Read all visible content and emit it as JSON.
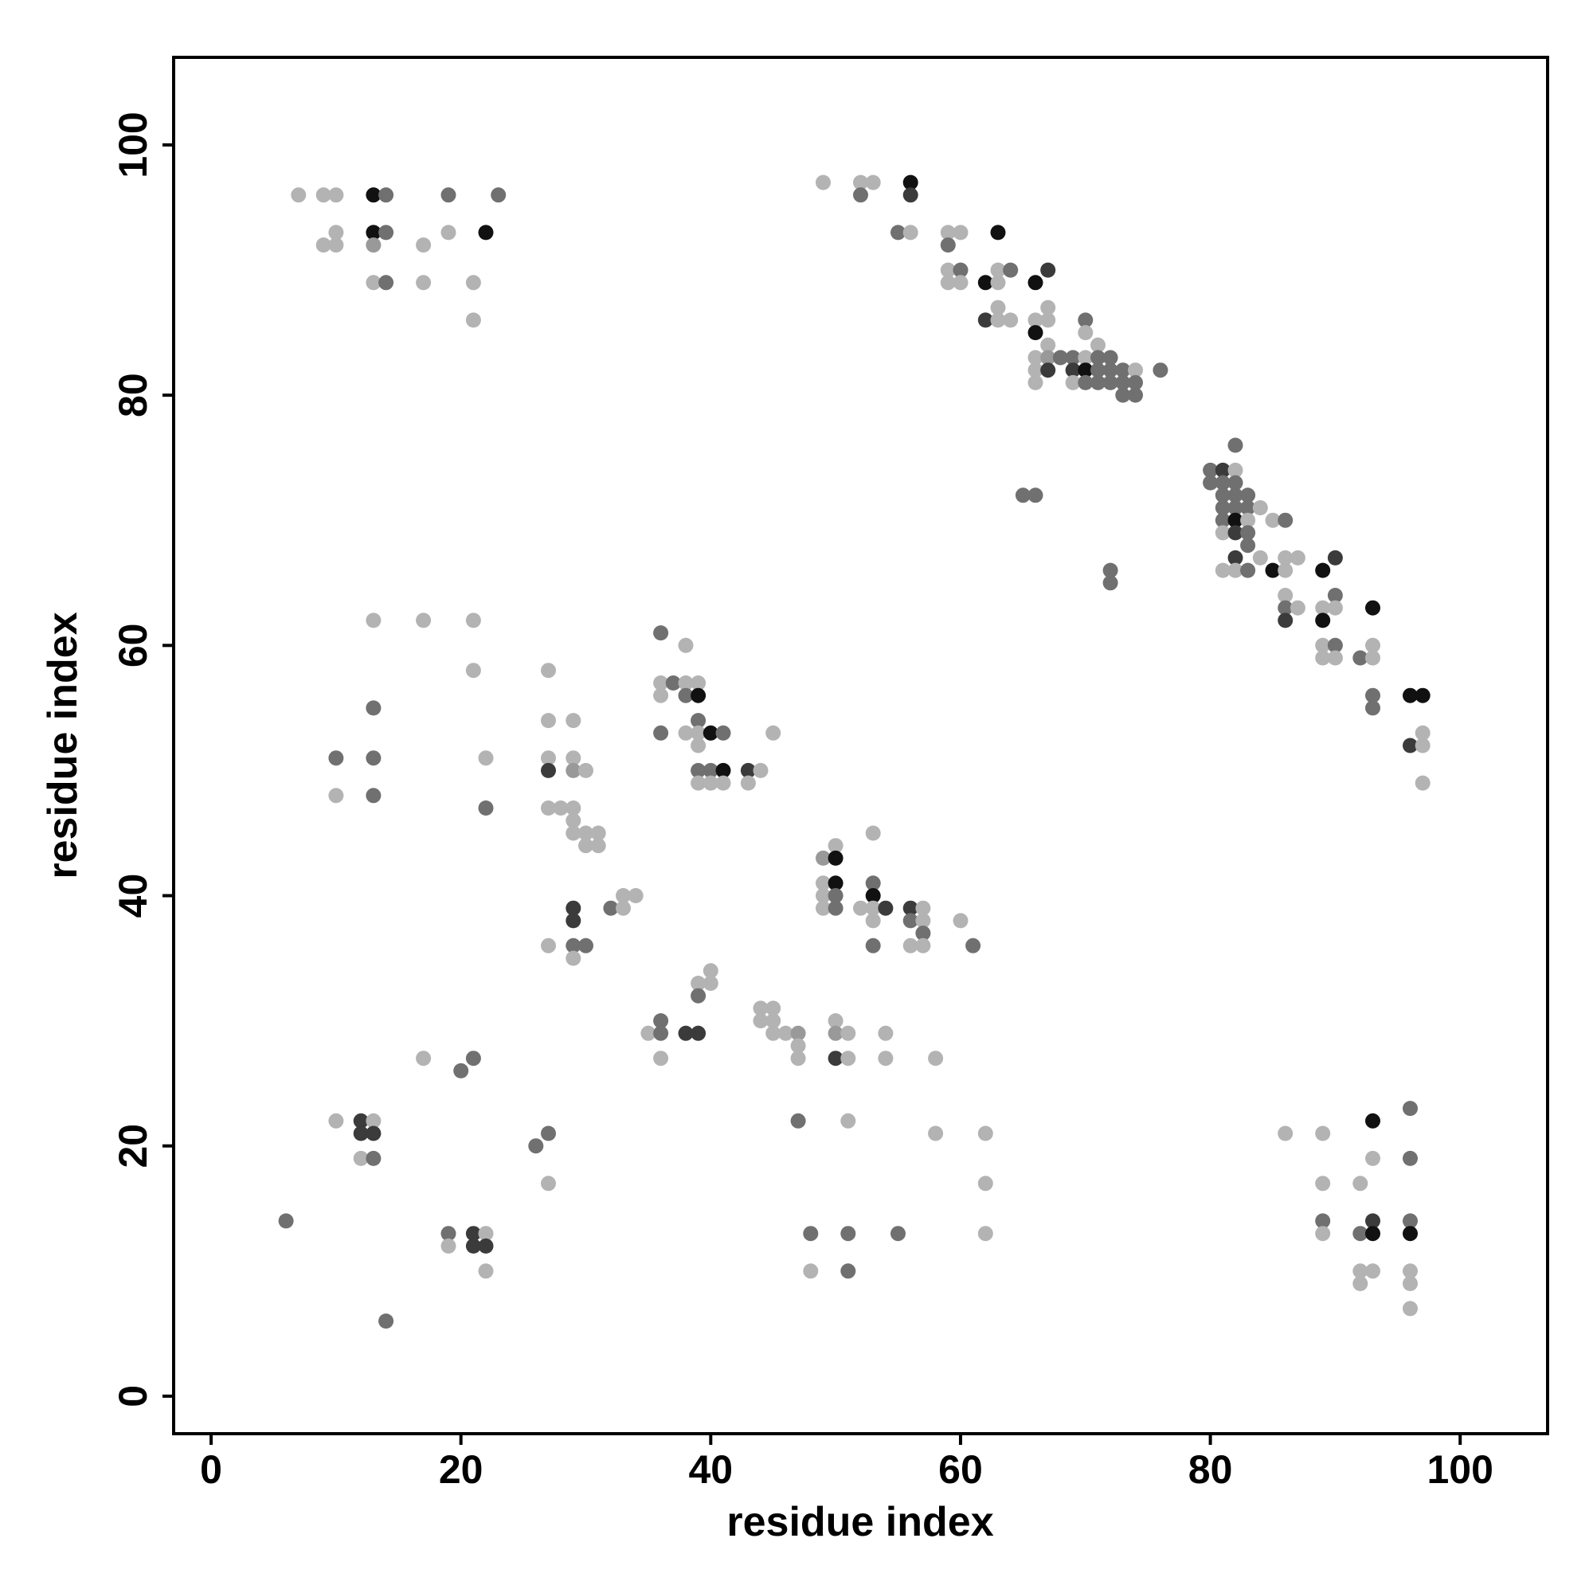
{
  "chart_data": {
    "type": "scatter",
    "title": "",
    "xlabel": "residue index",
    "ylabel": "residue index",
    "xlim": [
      -3,
      107
    ],
    "ylim": [
      -3,
      107
    ],
    "xticks": [
      0,
      20,
      40,
      60,
      80,
      100
    ],
    "yticks": [
      0,
      20,
      40,
      60,
      80,
      100
    ],
    "grid": false,
    "legend": "none",
    "colors": {
      "l1": "#b3b3b3",
      "l2": "#999999",
      "l3": "#707070",
      "l4": "#3b3b3b",
      "l5": "#111111"
    },
    "points": [
      [
        7,
        96,
        1
      ],
      [
        9,
        96,
        1
      ],
      [
        10,
        96,
        1
      ],
      [
        13,
        96,
        5
      ],
      [
        14,
        96,
        3
      ],
      [
        19,
        96,
        3
      ],
      [
        23,
        96,
        3
      ],
      [
        9,
        92,
        1
      ],
      [
        10,
        93,
        1
      ],
      [
        10,
        92,
        1
      ],
      [
        13,
        93,
        5
      ],
      [
        14,
        93,
        3
      ],
      [
        13,
        92,
        2
      ],
      [
        17,
        92,
        1
      ],
      [
        19,
        93,
        1
      ],
      [
        22,
        93,
        5
      ],
      [
        13,
        89,
        1
      ],
      [
        14,
        89,
        3
      ],
      [
        17,
        89,
        1
      ],
      [
        21,
        89,
        1
      ],
      [
        21,
        86,
        1
      ],
      [
        49,
        97,
        1
      ],
      [
        52,
        97,
        1
      ],
      [
        53,
        97,
        1
      ],
      [
        52,
        96,
        3
      ],
      [
        56,
        97,
        5
      ],
      [
        56,
        96,
        4
      ],
      [
        55,
        93,
        3
      ],
      [
        56,
        93,
        1
      ],
      [
        59,
        93,
        1
      ],
      [
        60,
        93,
        1
      ],
      [
        59,
        92,
        3
      ],
      [
        63,
        93,
        5
      ],
      [
        59,
        90,
        1
      ],
      [
        60,
        90,
        3
      ],
      [
        59,
        89,
        1
      ],
      [
        60,
        89,
        1
      ],
      [
        62,
        89,
        5
      ],
      [
        63,
        90,
        1
      ],
      [
        63,
        89,
        1
      ],
      [
        64,
        90,
        3
      ],
      [
        66,
        89,
        5
      ],
      [
        67,
        90,
        4
      ],
      [
        62,
        86,
        4
      ],
      [
        63,
        87,
        1
      ],
      [
        63,
        86,
        1
      ],
      [
        64,
        86,
        1
      ],
      [
        66,
        86,
        1
      ],
      [
        67,
        87,
        1
      ],
      [
        67,
        86,
        1
      ],
      [
        66,
        85,
        5
      ],
      [
        66,
        83,
        1
      ],
      [
        66,
        82,
        1
      ],
      [
        66,
        81,
        1
      ],
      [
        67,
        84,
        1
      ],
      [
        67,
        83,
        2
      ],
      [
        67,
        82,
        4
      ],
      [
        68,
        83,
        3
      ],
      [
        69,
        83,
        3
      ],
      [
        69,
        82,
        4
      ],
      [
        69,
        81,
        1
      ],
      [
        70,
        86,
        3
      ],
      [
        70,
        85,
        1
      ],
      [
        70,
        83,
        1
      ],
      [
        70,
        82,
        5
      ],
      [
        70,
        81,
        3
      ],
      [
        71,
        84,
        1
      ],
      [
        71,
        83,
        3
      ],
      [
        71,
        82,
        3
      ],
      [
        71,
        81,
        3
      ],
      [
        72,
        83,
        3
      ],
      [
        72,
        82,
        3
      ],
      [
        72,
        81,
        3
      ],
      [
        73,
        82,
        3
      ],
      [
        73,
        81,
        3
      ],
      [
        73,
        80,
        3
      ],
      [
        74,
        82,
        1
      ],
      [
        74,
        81,
        3
      ],
      [
        74,
        80,
        3
      ],
      [
        76,
        82,
        3
      ],
      [
        65,
        72,
        3
      ],
      [
        66,
        72,
        3
      ],
      [
        72,
        66,
        3
      ],
      [
        72,
        65,
        3
      ],
      [
        80,
        74,
        3
      ],
      [
        80,
        73,
        3
      ],
      [
        81,
        74,
        4
      ],
      [
        81,
        73,
        3
      ],
      [
        81,
        72,
        3
      ],
      [
        81,
        71,
        3
      ],
      [
        81,
        70,
        3
      ],
      [
        81,
        69,
        1
      ],
      [
        81,
        66,
        1
      ],
      [
        82,
        76,
        3
      ],
      [
        82,
        74,
        1
      ],
      [
        82,
        73,
        3
      ],
      [
        82,
        72,
        3
      ],
      [
        82,
        71,
        3
      ],
      [
        82,
        70,
        5
      ],
      [
        82,
        69,
        4
      ],
      [
        82,
        67,
        4
      ],
      [
        82,
        66,
        1
      ],
      [
        83,
        72,
        3
      ],
      [
        83,
        71,
        3
      ],
      [
        83,
        70,
        1
      ],
      [
        83,
        69,
        3
      ],
      [
        83,
        68,
        3
      ],
      [
        83,
        66,
        3
      ],
      [
        84,
        71,
        1
      ],
      [
        84,
        67,
        1
      ],
      [
        85,
        70,
        1
      ],
      [
        85,
        66,
        5
      ],
      [
        86,
        70,
        3
      ],
      [
        86,
        67,
        1
      ],
      [
        86,
        66,
        1
      ],
      [
        86,
        64,
        1
      ],
      [
        86,
        63,
        3
      ],
      [
        86,
        62,
        4
      ],
      [
        87,
        67,
        1
      ],
      [
        87,
        63,
        1
      ],
      [
        89,
        66,
        5
      ],
      [
        89,
        63,
        1
      ],
      [
        89,
        62,
        5
      ],
      [
        89,
        60,
        1
      ],
      [
        89,
        59,
        1
      ],
      [
        90,
        67,
        4
      ],
      [
        90,
        64,
        3
      ],
      [
        90,
        63,
        1
      ],
      [
        90,
        60,
        3
      ],
      [
        90,
        59,
        1
      ],
      [
        92,
        59,
        3
      ],
      [
        93,
        63,
        5
      ],
      [
        93,
        60,
        1
      ],
      [
        93,
        59,
        1
      ],
      [
        93,
        56,
        3
      ],
      [
        93,
        55,
        3
      ],
      [
        96,
        56,
        5
      ],
      [
        97,
        56,
        5
      ],
      [
        96,
        52,
        4
      ],
      [
        97,
        53,
        1
      ],
      [
        97,
        52,
        1
      ],
      [
        97,
        49,
        1
      ],
      [
        13,
        62,
        1
      ],
      [
        17,
        62,
        1
      ],
      [
        21,
        62,
        1
      ],
      [
        21,
        58,
        1
      ],
      [
        13,
        55,
        3
      ],
      [
        10,
        51,
        3
      ],
      [
        13,
        51,
        3
      ],
      [
        10,
        48,
        1
      ],
      [
        13,
        48,
        3
      ],
      [
        22,
        51,
        1
      ],
      [
        22,
        47,
        3
      ],
      [
        27,
        58,
        1
      ],
      [
        27,
        54,
        1
      ],
      [
        27,
        51,
        1
      ],
      [
        27,
        50,
        4
      ],
      [
        29,
        54,
        1
      ],
      [
        29,
        51,
        1
      ],
      [
        29,
        50,
        2
      ],
      [
        30,
        50,
        1
      ],
      [
        27,
        47,
        1
      ],
      [
        28,
        47,
        1
      ],
      [
        29,
        47,
        1
      ],
      [
        29,
        46,
        1
      ],
      [
        29,
        45,
        1
      ],
      [
        30,
        45,
        1
      ],
      [
        30,
        44,
        1
      ],
      [
        31,
        45,
        1
      ],
      [
        31,
        44,
        1
      ],
      [
        27,
        36,
        1
      ],
      [
        29,
        39,
        4
      ],
      [
        29,
        38,
        4
      ],
      [
        29,
        36,
        3
      ],
      [
        30,
        36,
        3
      ],
      [
        29,
        35,
        1
      ],
      [
        32,
        39,
        3
      ],
      [
        33,
        40,
        1
      ],
      [
        33,
        39,
        1
      ],
      [
        34,
        40,
        1
      ],
      [
        36,
        61,
        3
      ],
      [
        36,
        57,
        1
      ],
      [
        36,
        56,
        1
      ],
      [
        37,
        57,
        3
      ],
      [
        38,
        60,
        1
      ],
      [
        38,
        57,
        1
      ],
      [
        38,
        56,
        3
      ],
      [
        39,
        57,
        1
      ],
      [
        39,
        56,
        5
      ],
      [
        36,
        53,
        3
      ],
      [
        38,
        53,
        1
      ],
      [
        39,
        54,
        3
      ],
      [
        39,
        53,
        1
      ],
      [
        39,
        52,
        1
      ],
      [
        40,
        53,
        5
      ],
      [
        41,
        53,
        3
      ],
      [
        39,
        50,
        3
      ],
      [
        40,
        50,
        3
      ],
      [
        41,
        50,
        5
      ],
      [
        39,
        49,
        1
      ],
      [
        40,
        49,
        1
      ],
      [
        41,
        49,
        1
      ],
      [
        43,
        50,
        4
      ],
      [
        43,
        49,
        1
      ],
      [
        44,
        50,
        1
      ],
      [
        45,
        53,
        1
      ],
      [
        49,
        43,
        2
      ],
      [
        50,
        44,
        1
      ],
      [
        50,
        43,
        5
      ],
      [
        49,
        41,
        1
      ],
      [
        50,
        41,
        5
      ],
      [
        49,
        40,
        1
      ],
      [
        50,
        40,
        3
      ],
      [
        49,
        39,
        1
      ],
      [
        50,
        39,
        3
      ],
      [
        52,
        39,
        1
      ],
      [
        53,
        41,
        3
      ],
      [
        53,
        40,
        5
      ],
      [
        53,
        39,
        1
      ],
      [
        53,
        38,
        1
      ],
      [
        54,
        39,
        4
      ],
      [
        53,
        45,
        1
      ],
      [
        53,
        36,
        3
      ],
      [
        56,
        39,
        4
      ],
      [
        56,
        38,
        3
      ],
      [
        56,
        36,
        1
      ],
      [
        57,
        39,
        1
      ],
      [
        57,
        38,
        1
      ],
      [
        57,
        37,
        3
      ],
      [
        57,
        36,
        1
      ],
      [
        60,
        38,
        1
      ],
      [
        61,
        36,
        3
      ],
      [
        35,
        29,
        1
      ],
      [
        36,
        30,
        3
      ],
      [
        36,
        29,
        3
      ],
      [
        36,
        27,
        1
      ],
      [
        38,
        29,
        4
      ],
      [
        39,
        29,
        4
      ],
      [
        39,
        33,
        1
      ],
      [
        39,
        32,
        3
      ],
      [
        40,
        34,
        1
      ],
      [
        40,
        33,
        1
      ],
      [
        44,
        31,
        1
      ],
      [
        44,
        30,
        1
      ],
      [
        45,
        31,
        1
      ],
      [
        45,
        30,
        1
      ],
      [
        45,
        29,
        1
      ],
      [
        46,
        29,
        1
      ],
      [
        47,
        29,
        2
      ],
      [
        47,
        28,
        1
      ],
      [
        47,
        27,
        1
      ],
      [
        50,
        30,
        1
      ],
      [
        50,
        29,
        2
      ],
      [
        50,
        27,
        4
      ],
      [
        51,
        29,
        1
      ],
      [
        51,
        27,
        1
      ],
      [
        54,
        29,
        1
      ],
      [
        54,
        27,
        1
      ],
      [
        58,
        27,
        1
      ],
      [
        6,
        14,
        3
      ],
      [
        10,
        22,
        1
      ],
      [
        12,
        22,
        4
      ],
      [
        12,
        21,
        4
      ],
      [
        13,
        22,
        1
      ],
      [
        13,
        21,
        4
      ],
      [
        12,
        19,
        1
      ],
      [
        13,
        19,
        3
      ],
      [
        14,
        6,
        3
      ],
      [
        17,
        27,
        1
      ],
      [
        20,
        26,
        3
      ],
      [
        21,
        27,
        3
      ],
      [
        19,
        13,
        3
      ],
      [
        19,
        12,
        1
      ],
      [
        21,
        13,
        4
      ],
      [
        21,
        12,
        4
      ],
      [
        22,
        13,
        1
      ],
      [
        22,
        12,
        4
      ],
      [
        22,
        10,
        1
      ],
      [
        26,
        20,
        3
      ],
      [
        27,
        21,
        3
      ],
      [
        27,
        17,
        1
      ],
      [
        47,
        22,
        3
      ],
      [
        48,
        13,
        3
      ],
      [
        48,
        10,
        1
      ],
      [
        51,
        22,
        1
      ],
      [
        51,
        13,
        3
      ],
      [
        51,
        10,
        3
      ],
      [
        55,
        13,
        3
      ],
      [
        58,
        21,
        1
      ],
      [
        62,
        21,
        1
      ],
      [
        62,
        17,
        1
      ],
      [
        62,
        13,
        1
      ],
      [
        86,
        21,
        1
      ],
      [
        89,
        21,
        1
      ],
      [
        89,
        17,
        1
      ],
      [
        89,
        14,
        3
      ],
      [
        89,
        13,
        1
      ],
      [
        92,
        17,
        1
      ],
      [
        92,
        13,
        3
      ],
      [
        92,
        10,
        1
      ],
      [
        92,
        9,
        1
      ],
      [
        93,
        22,
        5
      ],
      [
        93,
        19,
        1
      ],
      [
        93,
        14,
        4
      ],
      [
        93,
        13,
        5
      ],
      [
        93,
        10,
        1
      ],
      [
        96,
        23,
        3
      ],
      [
        96,
        19,
        3
      ],
      [
        96,
        14,
        3
      ],
      [
        96,
        13,
        5
      ],
      [
        96,
        10,
        1
      ],
      [
        96,
        9,
        1
      ],
      [
        96,
        7,
        1
      ]
    ]
  }
}
